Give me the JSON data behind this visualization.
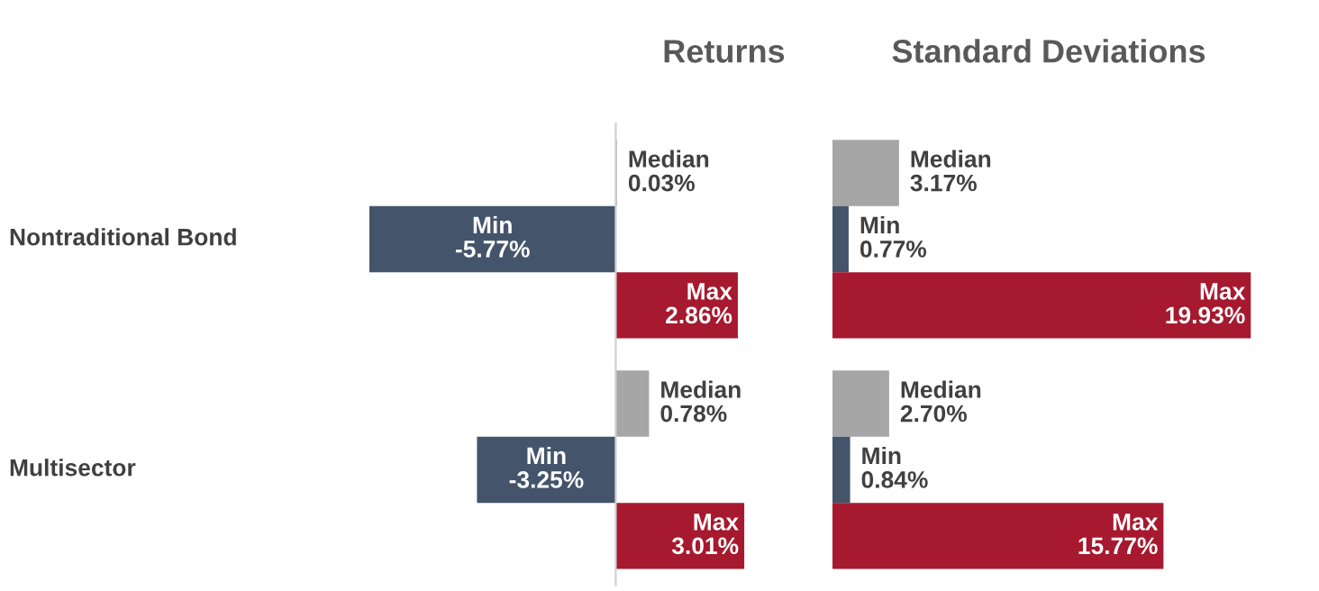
{
  "chart_data": [
    {
      "type": "bar",
      "orientation": "horizontal",
      "title": "Returns",
      "categories": [
        "Nontraditional Bond",
        "Multisector"
      ],
      "series": [
        {
          "name": "Median",
          "color": "#a6a6a6",
          "values": [
            0.03,
            0.78
          ],
          "value_labels": [
            "0.03%",
            "0.78%"
          ]
        },
        {
          "name": "Min",
          "color": "#44546a",
          "values": [
            -5.77,
            -3.25
          ],
          "value_labels": [
            "-5.77%",
            "-3.25%"
          ]
        },
        {
          "name": "Max",
          "color": "#a6192e",
          "values": [
            2.86,
            3.01
          ],
          "value_labels": [
            "2.86%",
            "3.01%"
          ]
        }
      ]
    },
    {
      "type": "bar",
      "orientation": "horizontal",
      "title": "Standard Deviations",
      "categories": [
        null,
        null
      ],
      "series": [
        {
          "name": "Median",
          "color": "#a6a6a6",
          "values": [
            3.17,
            2.7
          ],
          "value_labels": [
            "3.17%",
            "2.70%"
          ]
        },
        {
          "name": "Min",
          "color": "#44546a",
          "values": [
            0.77,
            0.84
          ],
          "value_labels": [
            "0.77%",
            "0.84%"
          ]
        },
        {
          "name": "Max",
          "color": "#a6192e",
          "values": [
            19.93,
            15.77
          ],
          "value_labels": [
            "19.93%",
            "15.77%"
          ]
        }
      ]
    }
  ]
}
